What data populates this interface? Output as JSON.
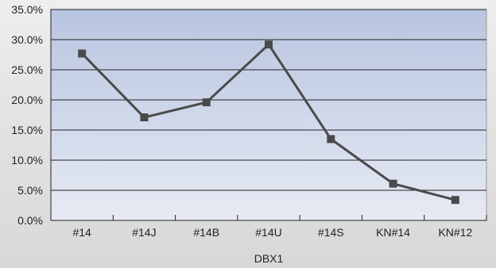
{
  "chart_data": {
    "type": "line",
    "title": "",
    "xlabel": "DBX1",
    "ylabel": "",
    "categories": [
      "#14",
      "#14J",
      "#14B",
      "#14U",
      "#14S",
      "KN#14",
      "KN#12"
    ],
    "series": [
      {
        "values": [
          27.7,
          17.1,
          19.6,
          29.2,
          13.5,
          6.1,
          3.4
        ]
      }
    ],
    "ylim": [
      0,
      35
    ],
    "yticks": [
      "0.0%",
      "5.0%",
      "10.0%",
      "15.0%",
      "20.0%",
      "25.0%",
      "30.0%",
      "35.0%"
    ],
    "grid": true,
    "legend": "none",
    "colors": {
      "plot_top": "#b8c5e0",
      "plot_bottom": "#e6eaf3",
      "line": "#4a4a4a",
      "marker": "#4a4a4a",
      "grid": "#222222"
    }
  }
}
